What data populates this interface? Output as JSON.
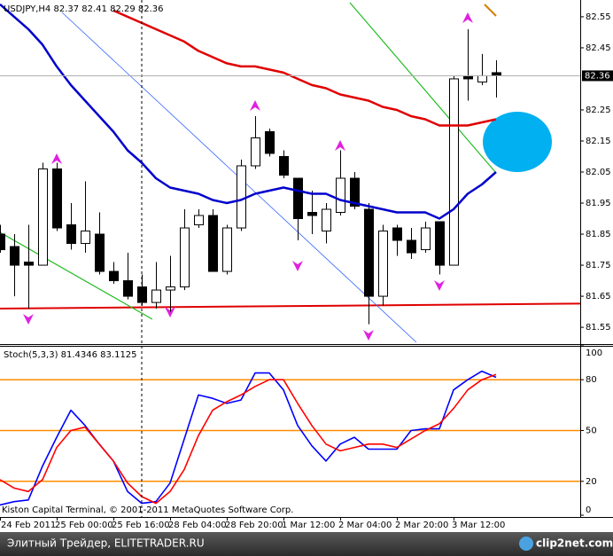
{
  "chart_data": [
    {
      "type": "candlestick",
      "title": "USDJPY,H4 82.37 82.41 82.29 82.36",
      "categories": [
        "24 Feb 2011",
        null,
        null,
        null,
        "25 Feb 00:00",
        null,
        null,
        null,
        "25 Feb 16:00",
        null,
        null,
        null,
        "28 Feb 04:00",
        null,
        null,
        null,
        "28 Feb 20:00",
        null,
        null,
        null,
        "1 Mar 12:00",
        null,
        null,
        null,
        "2 Mar 04:00",
        null,
        null,
        null,
        "2 Mar 20:00",
        null,
        null,
        null,
        "3 Mar 12:00",
        null,
        null,
        null
      ],
      "open": [
        81.85,
        81.81,
        81.76,
        81.75,
        82.06,
        81.88,
        81.82,
        81.85,
        81.73,
        81.7,
        81.68,
        81.63,
        81.67,
        81.68,
        81.88,
        81.91,
        81.73,
        81.87,
        82.07,
        82.18,
        82.1,
        82.03,
        81.92,
        81.86,
        81.92,
        82.03,
        81.93,
        81.65,
        81.87,
        81.83,
        81.8,
        81.89,
        81.75,
        82.36,
        82.34,
        82.37
      ],
      "high": [
        81.88,
        81.85,
        81.88,
        82.08,
        82.08,
        81.95,
        82.02,
        81.92,
        81.76,
        81.79,
        81.72,
        81.76,
        81.78,
        81.93,
        81.93,
        81.93,
        81.88,
        82.09,
        82.23,
        82.19,
        82.12,
        82.03,
        81.99,
        81.95,
        82.12,
        82.05,
        81.95,
        81.88,
        81.88,
        81.87,
        81.89,
        81.89,
        82.36,
        82.51,
        82.43,
        82.41
      ],
      "low": [
        81.79,
        81.65,
        81.61,
        81.75,
        81.86,
        81.8,
        81.79,
        81.72,
        81.69,
        81.64,
        81.62,
        81.61,
        81.6,
        81.67,
        81.87,
        81.73,
        81.72,
        81.86,
        82.06,
        82.1,
        82.03,
        81.83,
        81.85,
        81.82,
        81.91,
        81.93,
        81.56,
        81.62,
        81.78,
        81.77,
        81.79,
        81.72,
        81.75,
        82.28,
        82.33,
        82.29
      ],
      "close": [
        81.8,
        81.75,
        81.75,
        82.06,
        81.87,
        81.82,
        81.86,
        81.73,
        81.7,
        81.65,
        81.63,
        81.67,
        81.68,
        81.87,
        81.91,
        81.73,
        81.87,
        82.07,
        82.16,
        82.11,
        82.04,
        81.9,
        81.91,
        81.93,
        82.03,
        81.94,
        81.65,
        81.86,
        81.83,
        81.79,
        81.87,
        81.75,
        82.35,
        82.35,
        82.36,
        82.36
      ],
      "series": [
        {
          "color": "#0000cc",
          "values": [
            82.59,
            82.55,
            82.51,
            82.46,
            82.39,
            82.33,
            82.28,
            82.23,
            82.18,
            82.12,
            82.08,
            82.03,
            82.0,
            81.99,
            81.98,
            81.96,
            81.95,
            81.96,
            81.98,
            81.99,
            82.0,
            81.99,
            81.98,
            81.98,
            81.96,
            81.95,
            81.94,
            81.93,
            81.92,
            81.92,
            81.92,
            81.9,
            81.93,
            81.98,
            82.01,
            82.05
          ]
        },
        {
          "color": "#e00000",
          "values": [
            null,
            null,
            null,
            null,
            null,
            null,
            null,
            null,
            82.57,
            82.55,
            82.53,
            82.51,
            82.49,
            82.47,
            82.44,
            82.42,
            82.4,
            82.39,
            82.39,
            82.38,
            82.37,
            82.35,
            82.33,
            82.32,
            82.3,
            82.29,
            82.28,
            82.26,
            82.25,
            82.23,
            82.22,
            82.2,
            82.2,
            82.2,
            82.21,
            82.22
          ]
        }
      ],
      "last_price": 82.36,
      "ylim": [
        81.496,
        82.604
      ],
      "yticks": [
        82.55,
        82.45,
        82.25,
        82.15,
        82.05,
        81.95,
        81.85,
        81.75,
        81.65,
        81.55
      ]
    },
    {
      "type": "line",
      "title": "Stoch(5,3,3) 81.4346 83.1125",
      "annotation": "Kiston Capital Terminal, © 2001-2011 MetaQuotes Software Corp.",
      "series": [
        {
          "color": "#0000ff",
          "values": [
            6,
            8,
            9,
            29,
            46,
            62,
            53,
            42,
            32,
            14,
            7,
            8,
            19,
            45,
            71,
            69,
            66,
            68,
            84,
            84,
            74,
            53,
            41,
            32,
            42,
            46,
            39,
            39,
            39,
            50,
            51,
            51,
            74,
            80,
            85,
            81.4346
          ]
        },
        {
          "color": "#ff0000",
          "values": [
            21,
            16,
            14,
            21,
            40,
            50,
            52,
            42,
            32,
            19,
            11,
            7,
            14,
            27,
            47,
            62,
            67,
            71,
            76,
            80,
            80,
            66,
            53,
            42,
            38,
            40,
            42,
            42,
            40,
            45,
            50,
            54,
            63,
            74,
            80,
            83.1125
          ]
        }
      ],
      "levels": [
        80,
        50,
        20
      ],
      "level_color": "#ff8c00",
      "ylim": [
        0,
        100
      ],
      "yticks": [
        100,
        80,
        50,
        20,
        0
      ]
    }
  ],
  "footer": {
    "site": "Элитный Трейдер, ELITETRADER.RU",
    "logo": "clip2net.com"
  }
}
